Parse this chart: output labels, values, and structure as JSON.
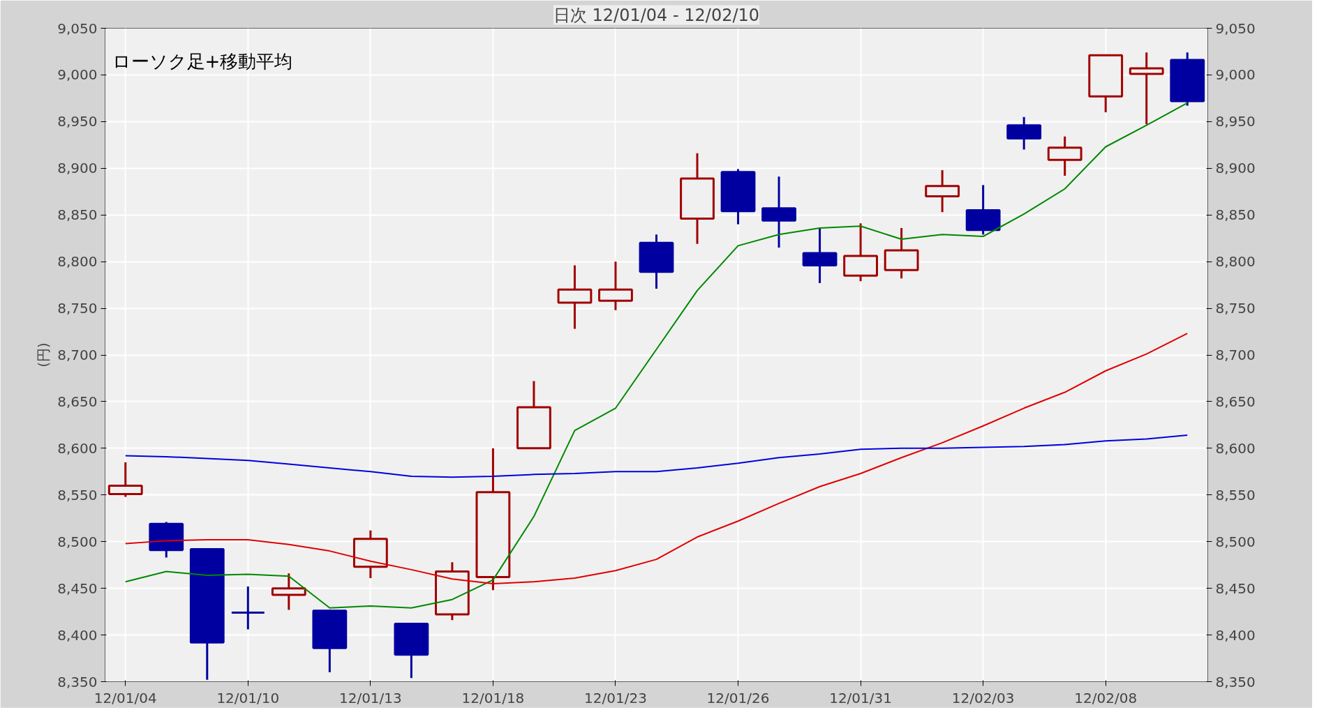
{
  "chart_data": {
    "type": "candlestick",
    "title": "日次 12/01/04 - 12/02/10",
    "ylabel": "(円)",
    "annotations": [
      "ローソク足+移動平均"
    ],
    "categories": [
      "12/01/04",
      null,
      null,
      "12/01/10",
      null,
      null,
      "12/01/13",
      null,
      null,
      "12/01/18",
      null,
      null,
      "12/01/23",
      null,
      null,
      "12/01/26",
      null,
      null,
      "12/01/31",
      null,
      null,
      "12/02/03",
      null,
      null,
      "12/02/08",
      null,
      null
    ],
    "ohlc": [
      [
        8551,
        8585,
        8548,
        8560
      ],
      [
        8519,
        8521,
        8483,
        8491
      ],
      [
        8492,
        8492,
        8352,
        8392
      ],
      [
        8424,
        8452,
        8406,
        8424
      ],
      [
        8443,
        8466,
        8427,
        8450
      ],
      [
        8426,
        8427,
        8360,
        8386
      ],
      [
        8473,
        8512,
        8461,
        8503
      ],
      [
        8412,
        8412,
        8354,
        8379
      ],
      [
        8422,
        8478,
        8416,
        8468
      ],
      [
        8462,
        8600,
        8448,
        8553
      ],
      [
        8600,
        8672,
        8600,
        8644
      ],
      [
        8756,
        8796,
        8728,
        8770
      ],
      [
        8758,
        8800,
        8748,
        8770
      ],
      [
        8820,
        8829,
        8771,
        8789
      ],
      [
        8846,
        8916,
        8819,
        8889
      ],
      [
        8896,
        8899,
        8840,
        8854
      ],
      [
        8857,
        8891,
        8815,
        8844
      ],
      [
        8809,
        8836,
        8777,
        8796
      ],
      [
        8785,
        8841,
        8779,
        8806
      ],
      [
        8791,
        8836,
        8782,
        8812
      ],
      [
        8870,
        8898,
        8853,
        8881
      ],
      [
        8855,
        8882,
        8829,
        8834
      ],
      [
        8946,
        8955,
        8920,
        8932
      ],
      [
        8909,
        8934,
        8892,
        8922
      ],
      [
        8977,
        9021,
        8960,
        9021
      ],
      [
        9001,
        9024,
        8947,
        9007
      ],
      [
        9016,
        9024,
        8967,
        8972
      ]
    ],
    "colors": [
      "#a00000",
      "#0000a0",
      "#0000a0",
      "#0000a0",
      "#a00000",
      "#0000a0",
      "#a00000",
      "#0000a0",
      "#a00000",
      "#a00000",
      "#a00000",
      "#a00000",
      "#a00000",
      "#0000a0",
      "#a00000",
      "#0000a0",
      "#0000a0",
      "#0000a0",
      "#a00000",
      "#a00000",
      "#a00000",
      "#0000a0",
      "#0000a0",
      "#a00000",
      "#a00000",
      "#a00000",
      "#0000a0"
    ],
    "series": [
      {
        "type": "line",
        "color": "#008800",
        "values": [
          8457,
          8468,
          8464,
          8465,
          8463,
          8429,
          8431,
          8429,
          8438,
          8459,
          8527,
          8619,
          8643,
          8706,
          8769,
          8817,
          8829,
          8836,
          8838,
          8824,
          8829,
          8827,
          8851,
          8878,
          8923,
          8946,
          8970
        ]
      },
      {
        "type": "line",
        "color": "#e00000",
        "values": [
          8498,
          8501,
          8502,
          8502,
          8497,
          8490,
          8479,
          8470,
          8460,
          8455,
          8457,
          8461,
          8469,
          8481,
          8505,
          8522,
          8541,
          8559,
          8573,
          8590,
          8606,
          8624,
          8643,
          8660,
          8683,
          8701,
          8723
        ]
      },
      {
        "type": "line",
        "color": "#0000e0",
        "values": [
          8592,
          8591,
          8589,
          8587,
          8583,
          8579,
          8575,
          8570,
          8569,
          8570,
          8572,
          8573,
          8575,
          8575,
          8579,
          8584,
          8590,
          8594,
          8599,
          8600,
          8600,
          8601,
          8602,
          8604,
          8608,
          8610,
          8614
        ]
      }
    ],
    "ylim": [
      8350,
      9050
    ],
    "yticks": [
      {
        "value": 8350,
        "label": "8,350"
      },
      {
        "value": 8400,
        "label": "8,400"
      },
      {
        "value": 8450,
        "label": "8,450"
      },
      {
        "value": 8500,
        "label": "8,500"
      },
      {
        "value": 8550,
        "label": "8,550"
      },
      {
        "value": 8600,
        "label": "8,600"
      },
      {
        "value": 8650,
        "label": "8,650"
      },
      {
        "value": 8700,
        "label": "8,700"
      },
      {
        "value": 8750,
        "label": "8,750"
      },
      {
        "value": 8800,
        "label": "8,800"
      },
      {
        "value": 8850,
        "label": "8,850"
      },
      {
        "value": 8900,
        "label": "8,900"
      },
      {
        "value": 8950,
        "label": "8,950"
      },
      {
        "value": 9000,
        "label": "9,000"
      },
      {
        "value": 9050,
        "label": "9,050"
      }
    ],
    "y2lim": [
      8350,
      9050
    ],
    "y2ticks": [
      {
        "value": 8350,
        "label": "8,350"
      },
      {
        "value": 8400,
        "label": "8,400"
      },
      {
        "value": 8450,
        "label": "8,450"
      },
      {
        "value": 8500,
        "label": "8,500"
      },
      {
        "value": 8550,
        "label": "8,550"
      },
      {
        "value": 8600,
        "label": "8,600"
      },
      {
        "value": 8650,
        "label": "8,650"
      },
      {
        "value": 8700,
        "label": "8,700"
      },
      {
        "value": 8750,
        "label": "8,750"
      },
      {
        "value": 8800,
        "label": "8,800"
      },
      {
        "value": 8850,
        "label": "8,850"
      },
      {
        "value": 8900,
        "label": "8,900"
      },
      {
        "value": 8950,
        "label": "8,950"
      },
      {
        "value": 9000,
        "label": "9,000"
      },
      {
        "value": 9050,
        "label": "9,050"
      }
    ],
    "grid": true,
    "marker": "none",
    "line_style": "solid"
  }
}
